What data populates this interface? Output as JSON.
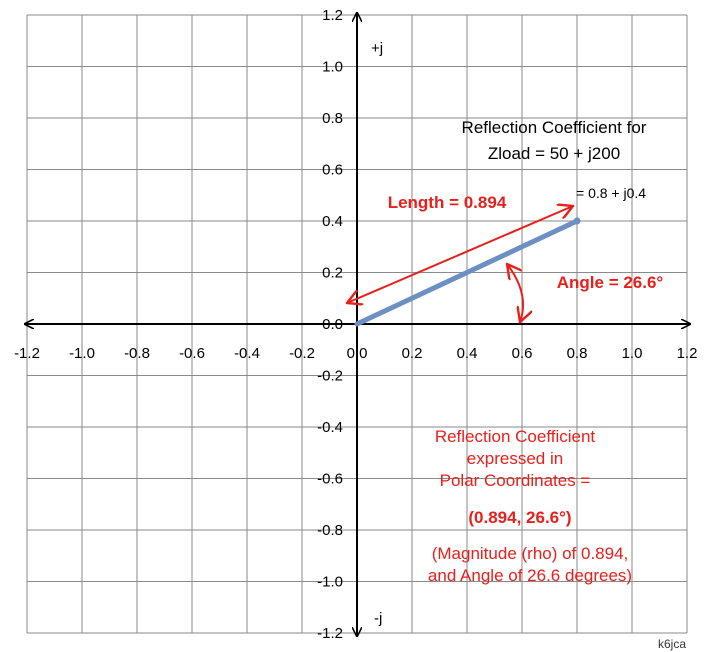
{
  "chart_data": {
    "type": "scatter",
    "xlim": [
      -1.2,
      1.2
    ],
    "ylim": [
      -1.2,
      1.2
    ],
    "grid": true,
    "x_ticks": [
      "-1.2",
      "-1.0",
      "-0.8",
      "-0.6",
      "-0.4",
      "-0.2",
      "0.0",
      "0.2",
      "0.4",
      "0.6",
      "0.8",
      "1.0",
      "1.2"
    ],
    "y_ticks": [
      "1.2",
      "1.0",
      "0.8",
      "0.6",
      "0.4",
      "0.2",
      "0.0",
      "-0.2",
      "-0.4",
      "-0.6",
      "-0.8",
      "-1.0",
      "-1.2"
    ],
    "y_pos_label": "+j",
    "y_neg_label": "-j",
    "title": {
      "line1": "Reflection Coefficient for",
      "line2": "Zload = 50 + j200"
    },
    "vector": {
      "from": [
        0,
        0
      ],
      "to": [
        0.8,
        0.4
      ],
      "label": "= 0.8 + j0.4",
      "color": "#6c8fc4"
    },
    "length_annotation": "Length = 0.894",
    "angle_annotation": "Angle = 26.6°",
    "polar_note": {
      "line1": "Reflection Coefficient",
      "line2": "expressed in",
      "line3": "Polar Coordinates =",
      "line4": "(0.894, 26.6°)",
      "line5": "(Magnitude (rho) of 0.894,",
      "line6": "and Angle of 26.6 degrees)"
    },
    "annotation_color": "#e8201c"
  },
  "credit": "k6jca"
}
